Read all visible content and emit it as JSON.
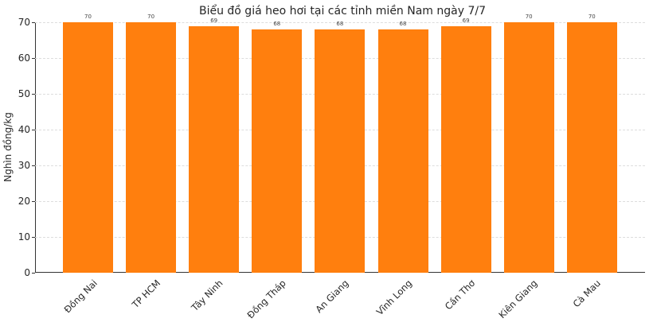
{
  "chart_data": {
    "type": "bar",
    "title": "Biểu đồ giá heo hơi tại các tỉnh miền Nam ngày 7/7",
    "xlabel": "",
    "ylabel": "Nghìn đồng/kg",
    "categories": [
      "Đồng Nai",
      "TP HCM",
      "Tây Ninh",
      "Đồng Tháp",
      "An Giang",
      "Vĩnh Long",
      "Cần Thơ",
      "Kiên Giang",
      "Cà Mau"
    ],
    "values": [
      70,
      70,
      69,
      68,
      68,
      68,
      69,
      70,
      70
    ],
    "ylim": [
      0,
      70
    ],
    "yticks": [
      0,
      10,
      20,
      30,
      40,
      50,
      60,
      70
    ],
    "grid": true,
    "legend": null,
    "bar_color": "#ff7f0e",
    "data_labels": true
  }
}
